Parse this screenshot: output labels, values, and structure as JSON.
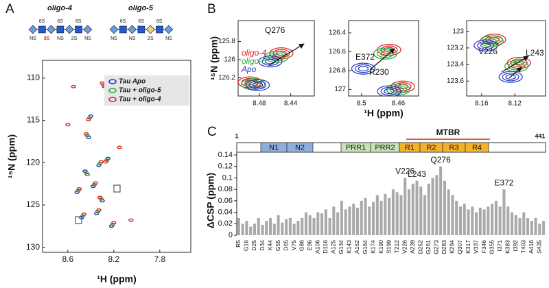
{
  "chart_data": [
    {
      "type": "scatter",
      "panel_label": "A",
      "schematic": {
        "titles": [
          "oligo-4",
          "oligo-5"
        ],
        "top_labels": [
          [
            "6S",
            "6S",
            "6S"
          ],
          [
            "6S",
            "6S",
            "6S"
          ]
        ],
        "bottom_labels": [
          [
            "NS",
            "3S",
            "NS",
            "2S",
            "NS"
          ],
          [
            "NS",
            "NS",
            "2S",
            "NS"
          ]
        ]
      },
      "xlabel": "¹H (ppm)",
      "ylabel": "¹⁵N (ppm)",
      "xlim": [
        8.82,
        7.53
      ],
      "xticks": [
        8.6,
        8.2,
        7.8
      ],
      "ylim": [
        107.9,
        130.6
      ],
      "yticks": [
        110,
        115,
        120,
        125,
        130
      ],
      "series": [
        {
          "name": "Tau Apo",
          "color": "#2233c4",
          "x": [
            8.52,
            8.45,
            8.38,
            8.3,
            8.25,
            8.42,
            8.35,
            8.48,
            8.28,
            8.4,
            8.33,
            8.22
          ],
          "y": [
            123.5,
            121.0,
            122.8,
            124.5,
            119.5,
            117.0,
            126.0,
            126.5,
            111.0,
            114.5,
            120.3,
            127.5
          ]
        },
        {
          "name": "Tau + oligo-5",
          "color": "#22aa33",
          "x": [
            8.51,
            8.44,
            8.37,
            8.31,
            8.26,
            8.43,
            8.34,
            8.47,
            8.29,
            8.41,
            8.32,
            8.21
          ],
          "y": [
            123.3,
            121.2,
            122.6,
            124.3,
            119.7,
            116.8,
            125.8,
            126.3,
            110.8,
            114.7,
            120.1,
            127.3
          ]
        },
        {
          "name": "Tau + oligo-4",
          "color": "#e0201c",
          "x": [
            8.5,
            8.43,
            8.36,
            8.32,
            8.27,
            8.44,
            8.33,
            8.46,
            8.3,
            8.42,
            8.31,
            8.2,
            8.6,
            8.15,
            8.55,
            8.05
          ],
          "y": [
            123.1,
            121.4,
            122.4,
            124.1,
            119.9,
            116.6,
            125.6,
            126.1,
            110.6,
            114.9,
            119.9,
            127.1,
            115.5,
            118.2,
            111.0,
            126.8
          ]
        }
      ],
      "legend": "upper right"
    },
    {
      "type": "contour",
      "panel_label": "B",
      "ylabel": "¹⁵N (ppm)",
      "xlim": [
        8.507,
        8.41
      ],
      "xticks": [
        8.48,
        8.44
      ],
      "ylim": [
        125.57,
        126.4
      ],
      "yticks": [
        125.8,
        126.0,
        126.2
      ],
      "annotations": [
        "Q276"
      ],
      "series": [
        {
          "name": "oligo-4",
          "color": "#e0201c",
          "x": [
            8.452,
            8.492
          ],
          "y": [
            125.93,
            126.25
          ]
        },
        {
          "name": "oligo-5",
          "color": "#22aa33",
          "x": [
            8.458,
            8.488
          ],
          "y": [
            125.97,
            126.27
          ]
        },
        {
          "name": "Apo",
          "color": "#2233c4",
          "x": [
            8.466,
            8.482
          ],
          "y": [
            126.02,
            126.28
          ]
        }
      ]
    },
    {
      "type": "contour",
      "xlabel": "¹H (ppm)",
      "xlim": [
        8.514,
        8.438
      ],
      "xticks": [
        8.5,
        8.46
      ],
      "ylim": [
        126.27,
        127.07
      ],
      "yticks": [
        126.4,
        126.6,
        126.8,
        127.0
      ],
      "annotations": [
        "E372",
        "R230"
      ],
      "series": [
        {
          "color": "#e0201c",
          "x": [
            8.47,
            8.455
          ],
          "y": [
            126.58,
            126.97
          ]
        },
        {
          "color": "#22aa33",
          "x": [
            8.474,
            8.46
          ],
          "y": [
            126.62,
            127.0
          ]
        },
        {
          "color": "#2233c4",
          "x": [
            8.498,
            8.47
          ],
          "y": [
            126.78,
            127.02
          ]
        }
      ]
    },
    {
      "type": "contour",
      "xlim": [
        8.178,
        8.083
      ],
      "xticks": [
        8.16,
        8.12
      ],
      "ylim": [
        122.87,
        123.78
      ],
      "yticks": [
        123.0,
        123.2,
        123.4,
        123.6
      ],
      "annotations": [
        "V226",
        "L243"
      ],
      "series": [
        {
          "color": "#e0201c",
          "x": [
            8.145,
            8.115
          ],
          "y": [
            123.1,
            123.38
          ]
        },
        {
          "color": "#22aa33",
          "x": [
            8.148,
            8.118
          ],
          "y": [
            123.12,
            123.42
          ]
        },
        {
          "color": "#2233c4",
          "x": [
            8.155,
            8.125
          ],
          "y": [
            123.17,
            123.55
          ]
        }
      ]
    },
    {
      "type": "bar",
      "panel_label": "C",
      "ylabel": "ΔCSP (ppm)",
      "color": "#a9a9a9",
      "range_labels": [
        "1",
        "441"
      ],
      "region_label": "MTBR",
      "domains": [
        "N1",
        "N2",
        "PRR1",
        "PRR2",
        "R1",
        "R2",
        "R3",
        "R4"
      ],
      "ylim": [
        0,
        0.14
      ],
      "yticks": [
        0,
        0.02,
        0.04,
        0.06,
        0.08,
        0.1,
        0.12,
        0.14
      ],
      "categories": [
        "R5",
        null,
        "G16",
        null,
        "D25",
        null,
        "D34",
        null,
        "K44",
        null,
        "G55",
        null,
        "D65",
        null,
        "V75",
        null,
        "G86",
        null,
        "E96",
        null,
        "A106",
        null,
        "D116",
        null,
        "A125",
        null,
        "G134",
        null,
        "K143",
        null,
        "A152",
        null,
        "G164",
        null,
        "K174",
        null,
        "K190",
        null,
        "S199",
        null,
        "T212",
        null,
        "V226",
        null,
        "A239",
        null,
        "D252",
        null,
        "G261",
        null,
        "G273",
        null,
        "D283",
        null,
        "K294",
        null,
        "Q307",
        null,
        "K317",
        null,
        "V337",
        null,
        "F346",
        null,
        "G355",
        null,
        "I371",
        null,
        "K383",
        null,
        "I392",
        null,
        "T403",
        null,
        "A416",
        null,
        "S435",
        null
      ],
      "values": [
        0.03,
        0.02,
        0.025,
        0.015,
        0.02,
        0.03,
        0.018,
        0.025,
        0.03,
        0.02,
        0.035,
        0.022,
        0.028,
        0.03,
        0.02,
        0.025,
        0.03,
        0.04,
        0.035,
        0.03,
        0.04,
        0.038,
        0.045,
        0.03,
        0.05,
        0.04,
        0.06,
        0.045,
        0.05,
        0.055,
        0.048,
        0.06,
        0.065,
        0.05,
        0.058,
        0.07,
        0.06,
        0.072,
        0.065,
        0.08,
        0.075,
        0.07,
        0.1,
        0.08,
        0.09,
        0.095,
        0.085,
        0.07,
        0.09,
        0.1,
        0.105,
        0.12,
        0.095,
        0.08,
        0.07,
        0.06,
        0.05,
        0.055,
        0.045,
        0.05,
        0.04,
        0.048,
        0.045,
        0.05,
        0.055,
        0.06,
        0.05,
        0.08,
        0.05,
        0.04,
        0.035,
        0.03,
        0.04,
        0.03,
        0.025,
        0.03,
        0.02,
        0.025
      ],
      "peak_labels": [
        null,
        null,
        null,
        null,
        null,
        null,
        null,
        null,
        null,
        null,
        null,
        null,
        null,
        null,
        null,
        null,
        null,
        null,
        null,
        null,
        null,
        null,
        null,
        null,
        null,
        null,
        null,
        null,
        null,
        null,
        null,
        null,
        null,
        null,
        null,
        null,
        null,
        null,
        null,
        null,
        null,
        null,
        "V226",
        null,
        null,
        "L243",
        null,
        null,
        null,
        null,
        null,
        "Q276",
        null,
        null,
        null,
        null,
        null,
        null,
        null,
        null,
        null,
        null,
        null,
        null,
        null,
        null,
        null,
        "E372",
        null,
        null,
        null,
        null,
        null,
        null,
        null,
        null,
        null,
        null
      ]
    }
  ]
}
